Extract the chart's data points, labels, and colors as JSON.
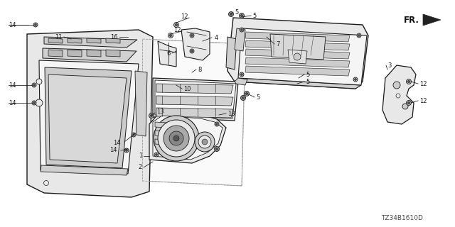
{
  "background_color": "#ffffff",
  "diagram_code": "TZ34B1610D",
  "fr_label": "FR.",
  "line_color": "#1a1a1a",
  "text_color": "#1a1a1a",
  "label_fontsize": 6.0,
  "diagram_fontsize": 6.5,
  "fill_light": "#f5f5f5",
  "fill_mid": "#e8e8e8",
  "fill_dark": "#d0d0d0",
  "fill_darker": "#b8b8b8"
}
